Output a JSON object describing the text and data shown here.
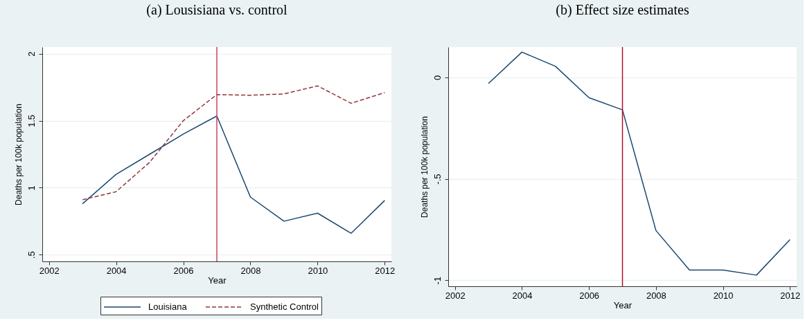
{
  "chart_data": [
    {
      "type": "line",
      "title": "(a) Lousisiana vs. control",
      "xlabel": "Year",
      "ylabel": "Deaths per 100k population",
      "x": [
        2003,
        2004,
        2005,
        2006,
        2007,
        2008,
        2009,
        2010,
        2011,
        2012
      ],
      "series": [
        {
          "name": "Louisiana",
          "color": "#1a476f",
          "line_style": "solid",
          "values": [
            0.88,
            1.1,
            1.25,
            1.4,
            1.535,
            0.93,
            0.75,
            0.81,
            0.66,
            0.905
          ]
        },
        {
          "name": "Synthetic Control",
          "color": "#90353b",
          "line_style": "dashed",
          "values": [
            0.91,
            0.97,
            1.19,
            1.5,
            1.695,
            1.69,
            1.7,
            1.76,
            1.63,
            1.71
          ]
        }
      ],
      "xlim": [
        2001.8,
        2012.2
      ],
      "xticks": [
        2002,
        2004,
        2006,
        2008,
        2010,
        2012
      ],
      "ylim": [
        0.45,
        2.05
      ],
      "yticks": [
        {
          "value": 0.5,
          "label": ".5"
        },
        1,
        1.5,
        2
      ],
      "ref_lines": [
        {
          "axis": "x",
          "value": 2007,
          "color": "#c9435f"
        }
      ],
      "grid": "y",
      "legend": "bottom"
    },
    {
      "type": "line",
      "title": "(b) Effect size estimates",
      "xlabel": "Year",
      "ylabel": "Deaths per 100k population",
      "x": [
        2003,
        2004,
        2005,
        2006,
        2007,
        2008,
        2009,
        2010,
        2011,
        2012
      ],
      "series": [
        {
          "color": "#1a476f",
          "line_style": "solid",
          "values": [
            -0.03,
            0.125,
            0.055,
            -0.1,
            -0.16,
            -0.755,
            -0.95,
            -0.95,
            -0.975,
            -0.8
          ]
        }
      ],
      "xlim": [
        2001.8,
        2012.2
      ],
      "xticks": [
        2002,
        2004,
        2006,
        2008,
        2010,
        2012
      ],
      "ylim": [
        -1.03,
        0.15
      ],
      "yticks": [
        -1,
        {
          "value": -0.5,
          "label": "-.5"
        },
        0
      ],
      "ref_lines": [
        {
          "axis": "x",
          "value": 2007,
          "color": "#b4102c"
        }
      ],
      "grid": "y"
    }
  ]
}
